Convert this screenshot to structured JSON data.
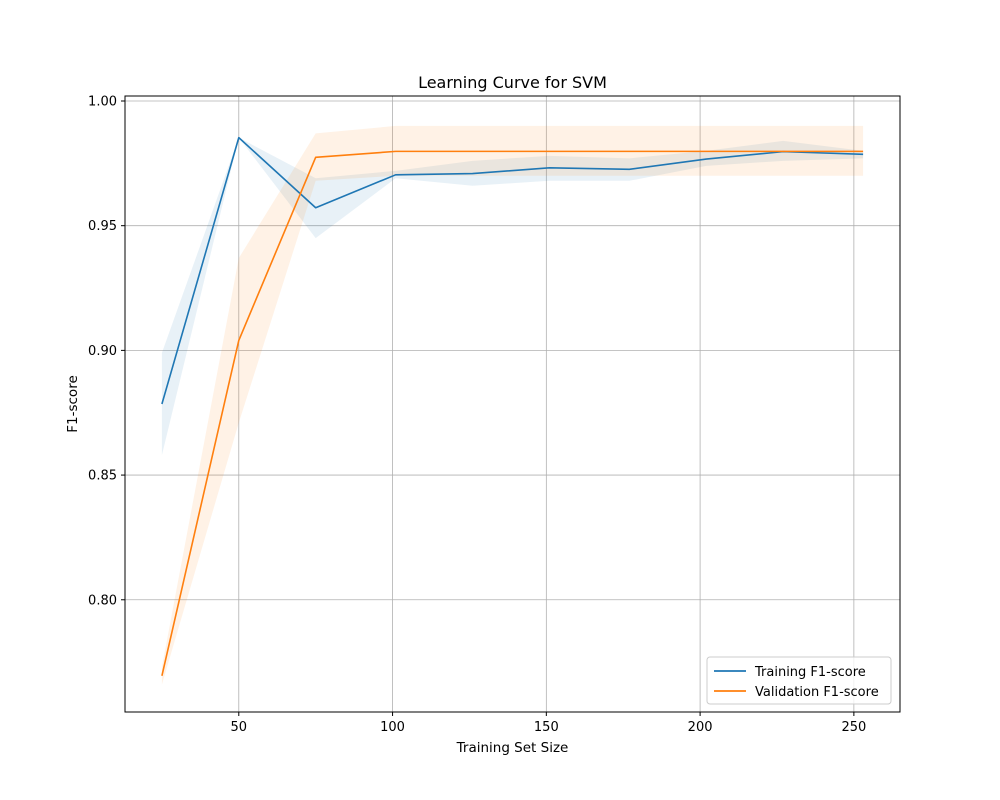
{
  "chart_data": {
    "type": "line",
    "title": "Learning Curve for SVM",
    "xlabel": "Training Set Size",
    "ylabel": "F1-score",
    "xlim": [
      13,
      265
    ],
    "ylim": [
      0.755,
      1.002
    ],
    "x_ticks": [
      50,
      100,
      150,
      200,
      250
    ],
    "y_ticks": [
      0.8,
      0.85,
      0.9,
      0.95,
      1.0
    ],
    "x_tick_labels": [
      "50",
      "100",
      "150",
      "200",
      "250"
    ],
    "y_tick_labels": [
      "0.80",
      "0.85",
      "0.90",
      "0.95",
      "1.00"
    ],
    "grid": true,
    "legend_position": "lower-right",
    "x": [
      25,
      50,
      75,
      101,
      126,
      151,
      177,
      202,
      227,
      253
    ],
    "series": [
      {
        "name": "Training F1-score",
        "color": "#1f77b4",
        "values": [
          0.8785,
          0.9853,
          0.9572,
          0.9704,
          0.9709,
          0.9732,
          0.9726,
          0.9767,
          0.9797,
          0.9786
        ],
        "lower": [
          0.858,
          0.9853,
          0.945,
          0.969,
          0.966,
          0.968,
          0.968,
          0.974,
          0.976,
          0.977
        ],
        "upper": [
          0.899,
          0.9853,
          0.969,
          0.972,
          0.976,
          0.978,
          0.977,
          0.98,
          0.984,
          0.98
        ]
      },
      {
        "name": "Validation F1-score",
        "color": "#ff7f0e",
        "values": [
          0.7695,
          0.904,
          0.9774,
          0.9798,
          0.9798,
          0.9798,
          0.9798,
          0.9798,
          0.9798,
          0.9798
        ],
        "lower": [
          0.766,
          0.871,
          0.968,
          0.97,
          0.97,
          0.97,
          0.97,
          0.97,
          0.97,
          0.97
        ],
        "upper": [
          0.773,
          0.937,
          0.987,
          0.99,
          0.99,
          0.99,
          0.99,
          0.99,
          0.99,
          0.99
        ]
      }
    ]
  }
}
